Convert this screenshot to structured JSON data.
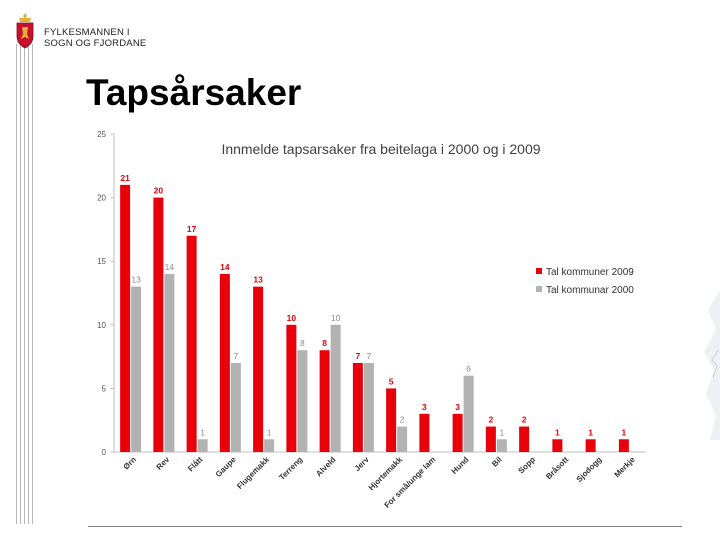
{
  "header": {
    "org_line1": "FYLKESMANNEN I",
    "org_line2": "SOGN OG FJORDANE",
    "slide_title": "Tapsårsaker"
  },
  "colors": {
    "series_2009": "#e8000b",
    "series_2000": "#b2b2b2",
    "crest_red": "#c8102e",
    "crest_gold": "#e3b03b"
  },
  "chart_data": {
    "type": "bar",
    "title": "Innmelde tapsarsaker fra beitelaga i 2000 og i 2009",
    "ylim": [
      0,
      25
    ],
    "yticks": [
      0,
      5,
      10,
      15,
      20,
      25
    ],
    "ytick_labels": [
      "0",
      "5",
      "10",
      "15",
      "20",
      "25"
    ],
    "xlabel": "",
    "ylabel": "",
    "legend_position": "right",
    "categories": [
      "Ørn",
      "Rev",
      "Flått",
      "Gaupe",
      "Flugemakk",
      "Terreng",
      "Alveld",
      "Jerv",
      "Hjortemakk",
      "For små/unge lam",
      "Hund",
      "Bil",
      "Sopp",
      "Bråsott",
      "Sjodogg",
      "Merkje"
    ],
    "series": [
      {
        "name": "Tal kommuner 2009",
        "values": [
          21,
          20,
          17,
          14,
          13,
          10,
          8,
          7,
          5,
          3,
          3,
          2,
          2,
          1,
          1,
          1
        ],
        "labels": [
          "21",
          "20",
          "17",
          "14",
          "13",
          "10",
          "8",
          "7",
          "5",
          "3",
          "3",
          "2",
          "2",
          "1",
          "1",
          "1"
        ]
      },
      {
        "name": "Tal kommunar 2000",
        "values": [
          13,
          14,
          1,
          7,
          1,
          8,
          10,
          7,
          2,
          null,
          6,
          1,
          null,
          null,
          null,
          null
        ],
        "labels": [
          "13",
          "14",
          "1",
          "7",
          "1",
          "8",
          "10",
          "7",
          "2",
          "",
          "6",
          "1",
          "",
          "",
          "",
          ""
        ]
      }
    ]
  }
}
